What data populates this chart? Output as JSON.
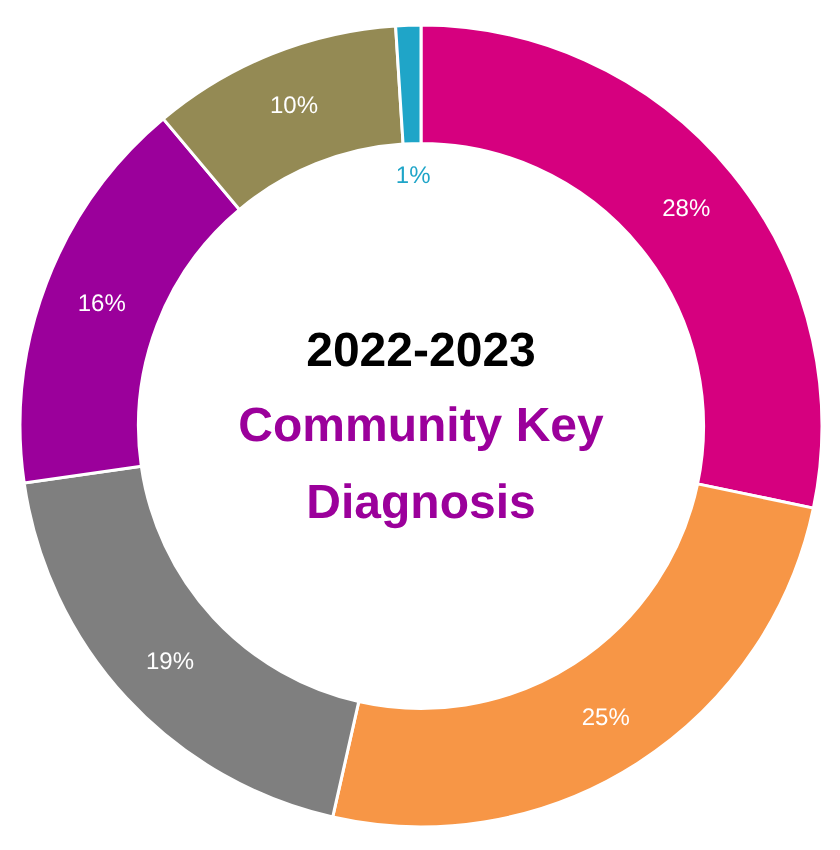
{
  "chart_data": {
    "type": "donut",
    "title": "2022-2023",
    "subtitle": "Community Key Diagnosis",
    "categories": [
      null,
      null,
      null,
      null,
      null,
      null
    ],
    "values": [
      28,
      25,
      19,
      16,
      10,
      1
    ],
    "colors": [
      "#d6007f",
      "#f79646",
      "#7f7f7f",
      "#9b009b",
      "#948a54",
      "#1fa5c8"
    ],
    "value_labels": [
      "28%",
      "25%",
      "19%",
      "16%",
      "10%",
      "1%"
    ],
    "legend": false
  }
}
